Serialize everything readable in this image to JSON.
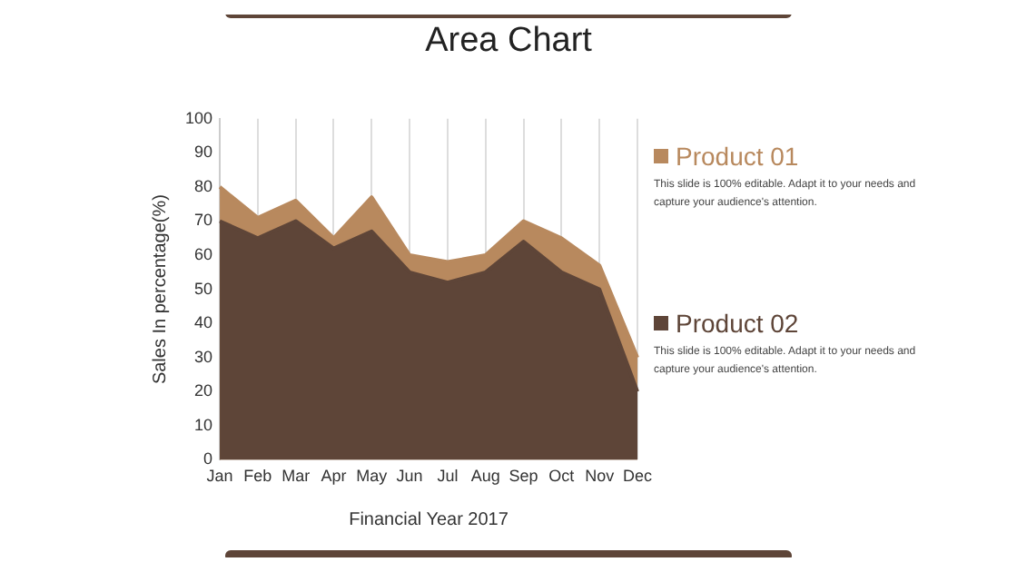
{
  "chart_data": {
    "type": "area",
    "title": "Area Chart",
    "xlabel": "Financial Year 2017",
    "ylabel": "Sales In percentage(%)",
    "categories": [
      "Jan",
      "Feb",
      "Mar",
      "Apr",
      "May",
      "Jun",
      "Jul",
      "Aug",
      "Sep",
      "Oct",
      "Nov",
      "Dec"
    ],
    "series": [
      {
        "name": "Product 01",
        "color": "#b8895e",
        "values": [
          80,
          71,
          76,
          65,
          77,
          60,
          58,
          60,
          70,
          65,
          57,
          30
        ]
      },
      {
        "name": "Product 02",
        "color": "#5e4538",
        "values": [
          70,
          65,
          70,
          62,
          67,
          55,
          52,
          55,
          64,
          55,
          50,
          20
        ]
      }
    ],
    "ylim": [
      0,
      100
    ],
    "yticks": [
      0,
      10,
      20,
      30,
      40,
      50,
      60,
      70,
      80,
      90,
      100
    ],
    "grid": "x",
    "legend": "right",
    "annotations": [
      "This slide is 100% editable. Adapt it to your needs and capture your audience's attention.",
      "This slide is 100% editable. Adapt it to your needs and capture your audience's attention."
    ]
  }
}
